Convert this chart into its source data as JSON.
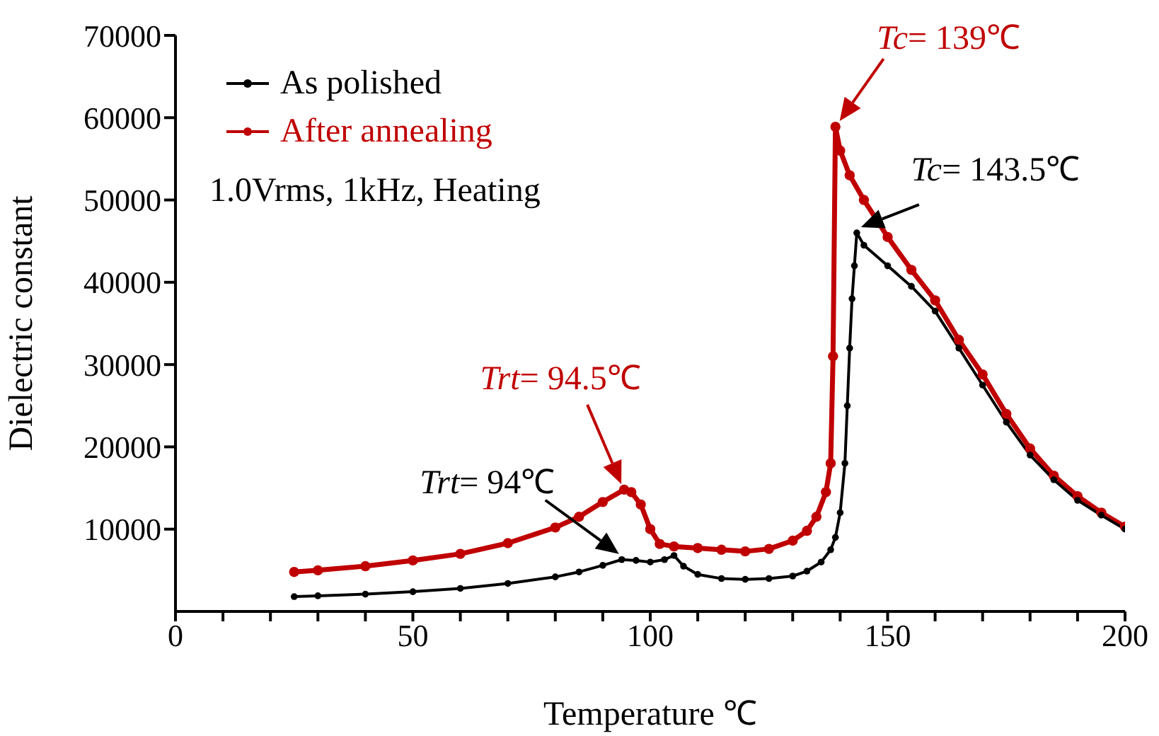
{
  "chart_data": {
    "type": "line",
    "xlabel": "Temperature  ℃",
    "ylabel": "Dielectric constant",
    "xlim": [
      0,
      200
    ],
    "ylim": [
      0,
      70000
    ],
    "xticks": [
      0,
      {
        "value": 10,
        "label": null
      },
      {
        "value": 20,
        "label": null
      },
      {
        "value": 30,
        "label": null
      },
      {
        "value": 40,
        "label": null
      },
      50,
      {
        "value": 60,
        "label": null
      },
      {
        "value": 70,
        "label": null
      },
      {
        "value": 80,
        "label": null
      },
      {
        "value": 90,
        "label": null
      },
      100,
      {
        "value": 110,
        "label": null
      },
      {
        "value": 120,
        "label": null
      },
      {
        "value": 130,
        "label": null
      },
      {
        "value": 140,
        "label": null
      },
      150,
      {
        "value": 160,
        "label": null
      },
      {
        "value": 170,
        "label": null
      },
      {
        "value": 180,
        "label": null
      },
      {
        "value": 190,
        "label": null
      },
      200
    ],
    "yticks": [
      10000,
      20000,
      30000,
      40000,
      50000,
      60000,
      70000
    ],
    "legend": "top left",
    "marker": "circle",
    "line_style": "solid",
    "series": [
      {
        "name": "As polished",
        "color": "#000000",
        "x": [
          25,
          30,
          40,
          50,
          60,
          70,
          80,
          85,
          90,
          94,
          97,
          100,
          103,
          105,
          107,
          110,
          115,
          120,
          125,
          130,
          133,
          136,
          138,
          139,
          140,
          141,
          141.5,
          142,
          142.5,
          143,
          143.5,
          145,
          150,
          155,
          160,
          165,
          170,
          175,
          180,
          185,
          190,
          195,
          200
        ],
        "values": [
          1800,
          1900,
          2100,
          2400,
          2800,
          3400,
          4200,
          4800,
          5600,
          6300,
          6200,
          6000,
          6300,
          6800,
          5500,
          4500,
          4000,
          3900,
          4000,
          4300,
          4900,
          6000,
          7500,
          9000,
          12000,
          18000,
          25000,
          32000,
          38000,
          42000,
          46000,
          44500,
          42000,
          39500,
          36500,
          32000,
          27500,
          23000,
          19000,
          16000,
          13500,
          11700,
          10000
        ]
      },
      {
        "name": "After annealing",
        "color": "#c00000",
        "x": [
          25,
          30,
          40,
          50,
          60,
          70,
          80,
          85,
          90,
          94.5,
          96,
          98,
          100,
          102,
          105,
          110,
          115,
          120,
          125,
          130,
          133,
          135,
          137,
          138,
          138.5,
          139,
          140,
          142,
          145,
          150,
          155,
          160,
          165,
          170,
          175,
          180,
          185,
          190,
          195,
          200
        ],
        "values": [
          4800,
          5000,
          5500,
          6200,
          7000,
          8300,
          10200,
          11500,
          13300,
          14800,
          14500,
          13000,
          10000,
          8200,
          7900,
          7700,
          7500,
          7300,
          7600,
          8600,
          9800,
          11500,
          14500,
          18000,
          31000,
          58900,
          56000,
          53000,
          50000,
          45500,
          41500,
          37800,
          33000,
          28800,
          24000,
          19800,
          16500,
          14000,
          12000,
          10300
        ]
      }
    ],
    "annotations": [
      {
        "text": "Tc= 139℃",
        "x": 139,
        "y": 58900
      },
      {
        "text": "Tc= 143.5℃",
        "x": 143.5,
        "y": 46000
      },
      {
        "text": "Trt= 94.5℃",
        "x": 94.5,
        "y": 14800
      },
      {
        "text": "Trt= 94℃",
        "x": 94,
        "y": 6300
      },
      "1.0Vrms, 1kHz, Heating"
    ]
  }
}
